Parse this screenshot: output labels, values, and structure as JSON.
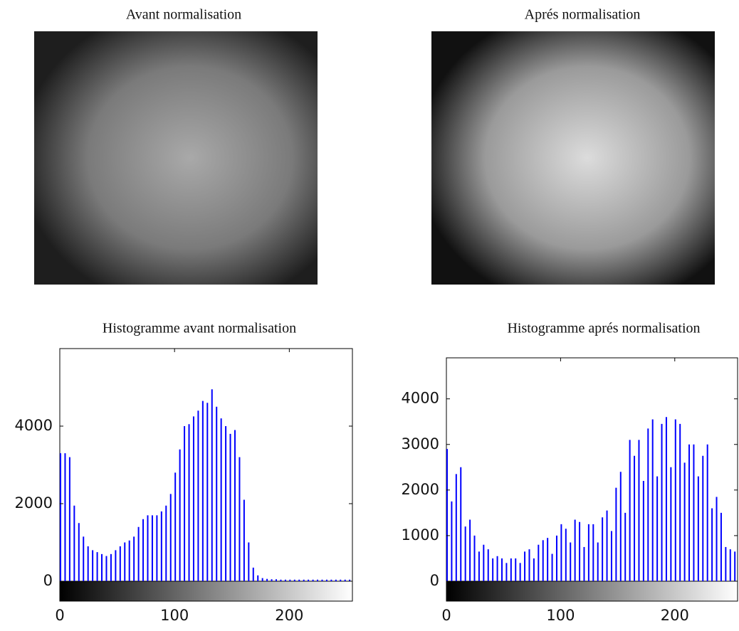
{
  "images": [
    {
      "title": "Avant normalisation"
    },
    {
      "title": "Aprés normalisation"
    }
  ],
  "chart_data": [
    {
      "type": "bar",
      "title": "Histogramme avant normalisation",
      "color": "#0000ff",
      "x": [
        0,
        4,
        8,
        12,
        16,
        20,
        24,
        28,
        32,
        36,
        40,
        44,
        48,
        52,
        56,
        60,
        64,
        68,
        72,
        76,
        80,
        84,
        88,
        92,
        96,
        100,
        104,
        108,
        112,
        116,
        120,
        124,
        128,
        132,
        136,
        140,
        144,
        148,
        152,
        156,
        160,
        164,
        168,
        172,
        176,
        180,
        184,
        188,
        192,
        196,
        200,
        204,
        208,
        212,
        216,
        220,
        224,
        228,
        232,
        236,
        240,
        244,
        248,
        252
      ],
      "values": [
        3300,
        3300,
        3200,
        1950,
        1500,
        1150,
        900,
        800,
        750,
        700,
        650,
        700,
        800,
        900,
        1000,
        1050,
        1150,
        1400,
        1600,
        1700,
        1700,
        1700,
        1800,
        1950,
        2250,
        2800,
        3400,
        4000,
        4050,
        4250,
        4400,
        4650,
        4600,
        4950,
        4500,
        4200,
        4000,
        3800,
        3900,
        3200,
        2100,
        1000,
        350,
        150,
        80,
        60,
        50,
        50,
        40,
        40,
        40,
        40,
        40,
        40,
        40,
        40,
        40,
        40,
        40,
        40,
        40,
        40,
        40,
        40
      ],
      "xlim": [
        0,
        255
      ],
      "ylim": [
        0,
        6000
      ],
      "xticks": [
        0,
        100,
        200
      ],
      "yticks": [
        0,
        2000,
        4000
      ],
      "grid": false
    },
    {
      "type": "bar",
      "title": "Histogramme aprés normalisation",
      "color": "#0000ff",
      "x": [
        0,
        4,
        8,
        12,
        16,
        20,
        24,
        28,
        32,
        36,
        40,
        44,
        48,
        52,
        56,
        60,
        64,
        68,
        72,
        76,
        80,
        84,
        88,
        92,
        96,
        100,
        104,
        108,
        112,
        116,
        120,
        124,
        128,
        132,
        136,
        140,
        144,
        148,
        152,
        156,
        160,
        164,
        168,
        172,
        176,
        180,
        184,
        188,
        192,
        196,
        200,
        204,
        208,
        212,
        216,
        220,
        224,
        228,
        232,
        236,
        240,
        244,
        248,
        252
      ],
      "values": [
        2900,
        1750,
        2350,
        2500,
        1200,
        1350,
        1000,
        650,
        800,
        700,
        500,
        550,
        500,
        400,
        500,
        500,
        400,
        650,
        700,
        500,
        800,
        900,
        950,
        600,
        1000,
        1250,
        1150,
        850,
        1350,
        1300,
        750,
        1250,
        1250,
        850,
        1400,
        1550,
        1100,
        2050,
        2400,
        1500,
        3100,
        2750,
        3100,
        2200,
        3350,
        3550,
        2300,
        3450,
        3600,
        2500,
        3550,
        3450,
        2600,
        3000,
        3000,
        2300,
        2750,
        3000,
        1600,
        1850,
        1500,
        750,
        700,
        650
      ],
      "xlim": [
        0,
        255
      ],
      "ylim": [
        0,
        4900
      ],
      "xticks": [
        0,
        100,
        200
      ],
      "yticks": [
        0,
        1000,
        2000,
        3000,
        4000
      ],
      "grid": false
    }
  ]
}
